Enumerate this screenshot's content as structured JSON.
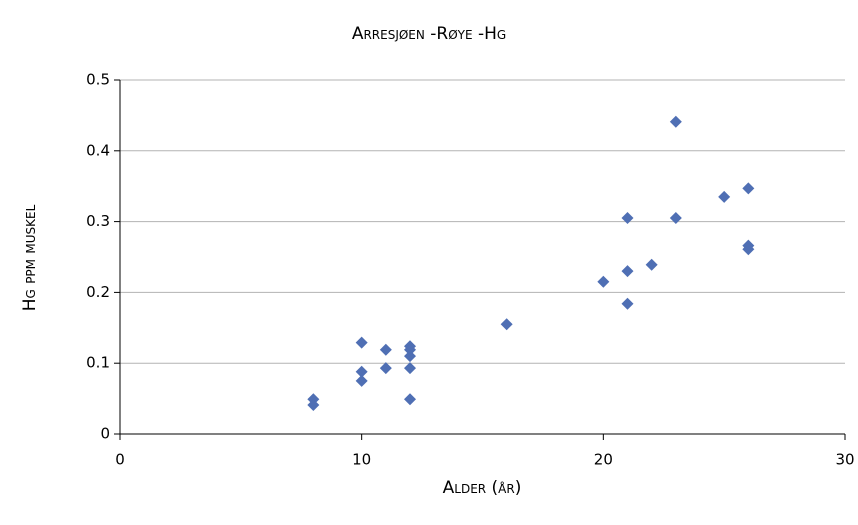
{
  "chart_data": {
    "type": "scatter",
    "title": "Arresjøen -Røye -Hg",
    "xlabel": "Alder (år)",
    "ylabel": "Hg ppm muskel",
    "x": [
      8,
      8,
      10,
      10,
      10,
      11,
      11,
      12,
      12,
      12,
      12,
      12,
      16,
      20,
      21,
      21,
      21,
      22,
      23,
      23,
      25,
      26,
      26,
      26
    ],
    "values": [
      0.049,
      0.041,
      0.129,
      0.088,
      0.075,
      0.119,
      0.093,
      0.124,
      0.119,
      0.11,
      0.093,
      0.049,
      0.155,
      0.215,
      0.305,
      0.23,
      0.184,
      0.239,
      0.441,
      0.305,
      0.335,
      0.347,
      0.266,
      0.261
    ],
    "color": "#4f6fb4",
    "xlim": [
      0,
      30
    ],
    "xticks": [
      0,
      10,
      20,
      30
    ],
    "ylim": [
      0,
      0.5
    ],
    "yticks": [
      0,
      0.1,
      0.2,
      0.3,
      0.4,
      0.5
    ],
    "grid": true
  }
}
